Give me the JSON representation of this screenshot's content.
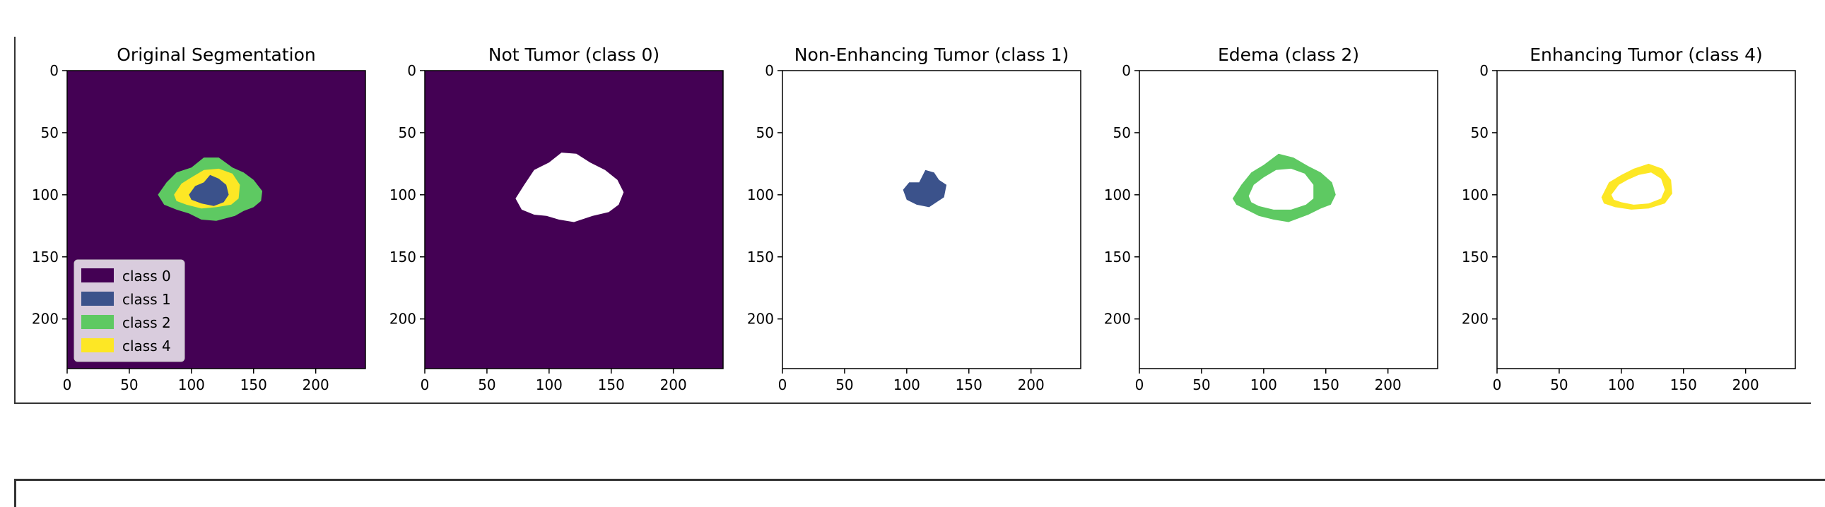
{
  "chart_data": [
    {
      "type": "heatmap",
      "title": "Original Segmentation",
      "background": "#440154",
      "xlim": [
        0,
        240
      ],
      "ylim": [
        240,
        0
      ],
      "xticks": [
        "0",
        "50",
        "100",
        "150",
        "200"
      ],
      "yticks": [
        "0",
        "50",
        "100",
        "150",
        "200"
      ],
      "regions": [
        {
          "class": "class 2",
          "color": "#5ec962",
          "outline": [
            [
              73,
              100
            ],
            [
              80,
              90
            ],
            [
              88,
              82
            ],
            [
              100,
              78
            ],
            [
              110,
              70
            ],
            [
              122,
              70
            ],
            [
              133,
              78
            ],
            [
              142,
              82
            ],
            [
              150,
              88
            ],
            [
              157,
              97
            ],
            [
              156,
              105
            ],
            [
              150,
              110
            ],
            [
              142,
              113
            ],
            [
              135,
              117
            ],
            [
              120,
              121
            ],
            [
              108,
              120
            ],
            [
              98,
              115
            ],
            [
              88,
              112
            ],
            [
              78,
              108
            ]
          ]
        },
        {
          "class": "class 4",
          "color": "#fde725",
          "outline": [
            [
              86,
              100
            ],
            [
              92,
              91
            ],
            [
              100,
              86
            ],
            [
              110,
              80
            ],
            [
              122,
              79
            ],
            [
              133,
              83
            ],
            [
              139,
              92
            ],
            [
              138,
              103
            ],
            [
              132,
              108
            ],
            [
              120,
              110
            ],
            [
              108,
              111
            ],
            [
              96,
              108
            ],
            [
              88,
              105
            ]
          ]
        },
        {
          "class": "class 1",
          "color": "#3b528b",
          "outline": [
            [
              98,
              100
            ],
            [
              103,
              93
            ],
            [
              110,
              90
            ],
            [
              115,
              84
            ],
            [
              122,
              87
            ],
            [
              128,
              92
            ],
            [
              130,
              100
            ],
            [
              126,
              106
            ],
            [
              118,
              109
            ],
            [
              108,
              107
            ],
            [
              100,
              104
            ]
          ]
        }
      ],
      "legend": {
        "location": "lower-left",
        "entries": [
          {
            "label": "class 0",
            "color": "#440154"
          },
          {
            "label": "class 1",
            "color": "#3b528b"
          },
          {
            "label": "class 2",
            "color": "#5ec962"
          },
          {
            "label": "class 4",
            "color": "#fde725"
          }
        ]
      }
    },
    {
      "type": "heatmap",
      "title": "Not Tumor (class 0)",
      "background": "#440154",
      "xlim": [
        0,
        240
      ],
      "ylim": [
        240,
        0
      ],
      "xticks": [
        "0",
        "50",
        "100",
        "150",
        "200"
      ],
      "yticks": [
        "0",
        "50",
        "100",
        "150",
        "200"
      ],
      "regions": [
        {
          "class": "tumor",
          "color": "#ffffff",
          "outline": [
            [
              73,
              103
            ],
            [
              80,
              92
            ],
            [
              88,
              80
            ],
            [
              100,
              74
            ],
            [
              110,
              66
            ],
            [
              122,
              67
            ],
            [
              133,
              74
            ],
            [
              145,
              80
            ],
            [
              155,
              88
            ],
            [
              160,
              98
            ],
            [
              156,
              108
            ],
            [
              148,
              114
            ],
            [
              135,
              117
            ],
            [
              120,
              122
            ],
            [
              108,
              120
            ],
            [
              98,
              117
            ],
            [
              88,
              116
            ],
            [
              78,
              112
            ]
          ]
        }
      ]
    },
    {
      "type": "heatmap",
      "title": "Non-Enhancing Tumor (class 1)",
      "background": "#ffffff",
      "xlim": [
        0,
        240
      ],
      "ylim": [
        240,
        0
      ],
      "xticks": [
        "0",
        "50",
        "100",
        "150",
        "200"
      ],
      "yticks": [
        "0",
        "50",
        "100",
        "150",
        "200"
      ],
      "regions": [
        {
          "class": "class 1",
          "color": "#3b528b",
          "outline": [
            [
              97,
              96
            ],
            [
              102,
              90
            ],
            [
              110,
              90
            ],
            [
              115,
              80
            ],
            [
              122,
              82
            ],
            [
              126,
              88
            ],
            [
              132,
              92
            ],
            [
              130,
              102
            ],
            [
              124,
              106
            ],
            [
              118,
              110
            ],
            [
              108,
              108
            ],
            [
              100,
              104
            ]
          ]
        }
      ]
    },
    {
      "type": "heatmap",
      "title": "Edema (class 2)",
      "background": "#ffffff",
      "xlim": [
        0,
        240
      ],
      "ylim": [
        240,
        0
      ],
      "xticks": [
        "0",
        "50",
        "100",
        "150",
        "200"
      ],
      "yticks": [
        "0",
        "50",
        "100",
        "150",
        "200"
      ],
      "regions": [
        {
          "class": "class 2",
          "color": "#5ec962",
          "outline": [
            [
              75,
              103
            ],
            [
              82,
              92
            ],
            [
              90,
              82
            ],
            [
              100,
              76
            ],
            [
              112,
              67
            ],
            [
              124,
              70
            ],
            [
              136,
              77
            ],
            [
              146,
              82
            ],
            [
              155,
              90
            ],
            [
              158,
              100
            ],
            [
              154,
              108
            ],
            [
              146,
              111
            ],
            [
              136,
              116
            ],
            [
              120,
              122
            ],
            [
              108,
              120
            ],
            [
              96,
              117
            ],
            [
              86,
              112
            ],
            [
              78,
              108
            ]
          ],
          "hole": [
            [
              88,
              101
            ],
            [
              92,
              92
            ],
            [
              100,
              86
            ],
            [
              110,
              80
            ],
            [
              122,
              79
            ],
            [
              133,
              83
            ],
            [
              140,
              92
            ],
            [
              140,
              103
            ],
            [
              134,
              108
            ],
            [
              122,
              112
            ],
            [
              108,
              112
            ],
            [
              96,
              109
            ],
            [
              90,
              106
            ]
          ]
        }
      ]
    },
    {
      "type": "heatmap",
      "title": "Enhancing Tumor (class 4)",
      "background": "#ffffff",
      "xlim": [
        0,
        240
      ],
      "ylim": [
        240,
        0
      ],
      "xticks": [
        "0",
        "50",
        "100",
        "150",
        "200"
      ],
      "yticks": [
        "0",
        "50",
        "100",
        "150",
        "200"
      ],
      "regions": [
        {
          "class": "class 4",
          "color": "#fde725",
          "outline": [
            [
              84,
              102
            ],
            [
              90,
              90
            ],
            [
              100,
              84
            ],
            [
              110,
              79
            ],
            [
              122,
              75
            ],
            [
              133,
              79
            ],
            [
              140,
              88
            ],
            [
              141,
              99
            ],
            [
              135,
              107
            ],
            [
              122,
              111
            ],
            [
              108,
              112
            ],
            [
              95,
              110
            ],
            [
              86,
              107
            ]
          ],
          "hole": [
            [
              92,
              100
            ],
            [
              98,
              92
            ],
            [
              105,
              88
            ],
            [
              114,
              84
            ],
            [
              124,
              82
            ],
            [
              132,
              87
            ],
            [
              135,
              96
            ],
            [
              132,
              103
            ],
            [
              122,
              107
            ],
            [
              110,
              108
            ],
            [
              100,
              106
            ],
            [
              94,
              104
            ]
          ]
        }
      ]
    }
  ]
}
